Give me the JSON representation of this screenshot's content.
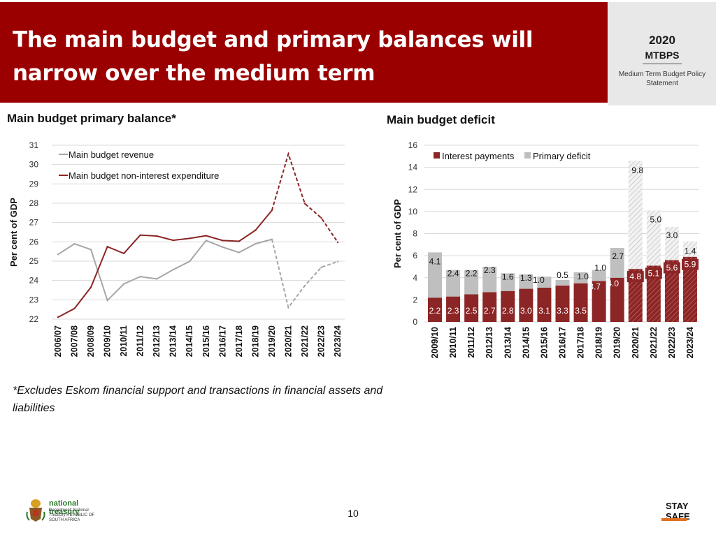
{
  "header": {
    "title": "The main budget and primary balances will narrow over the medium term",
    "brand_year": "2020",
    "brand_name": "MTBPS",
    "brand_subtitle": "Medium Term Budget Policy Statement",
    "bg_color": "#9b0000"
  },
  "left_panel": {
    "title": "Main budget primary balance*"
  },
  "right_panel": {
    "title": "Main budget deficit"
  },
  "chart_data": [
    {
      "type": "line",
      "title": "Main budget primary balance*",
      "ylabel": "Per cent of GDP",
      "xlabel": "",
      "ylim": [
        22,
        31
      ],
      "yticks": [
        22,
        23,
        24,
        25,
        26,
        27,
        28,
        29,
        30,
        31
      ],
      "grid": true,
      "categories": [
        "2006/07",
        "2007/08",
        "2008/09",
        "2009/10",
        "2010/11",
        "2011/12",
        "2012/13",
        "2013/14",
        "2014/15",
        "2015/16",
        "2016/17",
        "2017/18",
        "2018/19",
        "2019/20",
        "2020/21",
        "2021/22",
        "2022/23",
        "2023/24"
      ],
      "projection_from": "2019/20",
      "series": [
        {
          "name": "Main budget revenue",
          "color": "#a6a6a6",
          "values": [
            25.35,
            25.9,
            25.6,
            22.97,
            23.82,
            24.2,
            24.08,
            24.56,
            24.99,
            26.07,
            25.73,
            25.45,
            25.9,
            26.13,
            22.6,
            23.73,
            24.68,
            24.98
          ]
        },
        {
          "name": "Main budget non-interest expenditure",
          "color": "#8c2525",
          "values": [
            22.1,
            22.55,
            23.65,
            25.75,
            25.4,
            26.35,
            26.3,
            26.08,
            26.18,
            26.32,
            26.07,
            26.03,
            26.6,
            27.63,
            30.55,
            27.98,
            27.24,
            25.98
          ]
        }
      ],
      "legend_position": "top-left"
    },
    {
      "type": "bar",
      "stacked": true,
      "title": "Main budget deficit",
      "ylabel": "Per cent of GDP",
      "ylim": [
        0,
        16
      ],
      "yticks": [
        0,
        2,
        4,
        6,
        8,
        10,
        12,
        14,
        16
      ],
      "grid": true,
      "categories": [
        "2009/10",
        "2010/11",
        "2011/12",
        "2012/13",
        "2013/14",
        "2014/15",
        "2015/16",
        "2016/17",
        "2017/18",
        "2018/19",
        "2019/20",
        "2020/21",
        "2021/22",
        "2022/23",
        "2023/24"
      ],
      "projection_from": "2020/21",
      "series": [
        {
          "name": "Interest payments",
          "color": "#8c2525",
          "values": [
            2.2,
            2.3,
            2.5,
            2.7,
            2.8,
            3.0,
            3.1,
            3.3,
            3.5,
            3.7,
            4.0,
            4.8,
            5.1,
            5.6,
            5.9
          ],
          "labels": [
            "2.2",
            "2.3",
            "2.5",
            "2.7",
            "2.8",
            "3.0",
            "3.1",
            "3.3",
            "3.5",
            "3.7",
            "4.0",
            "4.8",
            "5.1",
            "5.6",
            "5.9"
          ]
        },
        {
          "name": "Primary deficit",
          "color": "#bfbfbf",
          "values": [
            4.1,
            2.4,
            2.2,
            2.3,
            1.6,
            1.3,
            1.0,
            0.5,
            1.0,
            1.0,
            2.7,
            9.8,
            5.0,
            3.0,
            1.4
          ],
          "labels": [
            "4.1",
            "2.4",
            "2.2",
            "2.3",
            "1.6",
            "1.3",
            "1.0",
            "0.5",
            "1.0",
            "1.0",
            "2.7",
            "9.8",
            "5.0",
            "3.0",
            "1.4"
          ]
        }
      ],
      "legend_position": "top"
    }
  ],
  "footnote": "*Excludes Eskom financial support and transactions in financial assets and liabilities",
  "footer": {
    "page_number": "10",
    "nt_name": "national treasury",
    "nt_dept": "Department: National Treasury REPUBLIC OF SOUTH AFRICA",
    "safe_logo_text": "STAY SAFE"
  }
}
